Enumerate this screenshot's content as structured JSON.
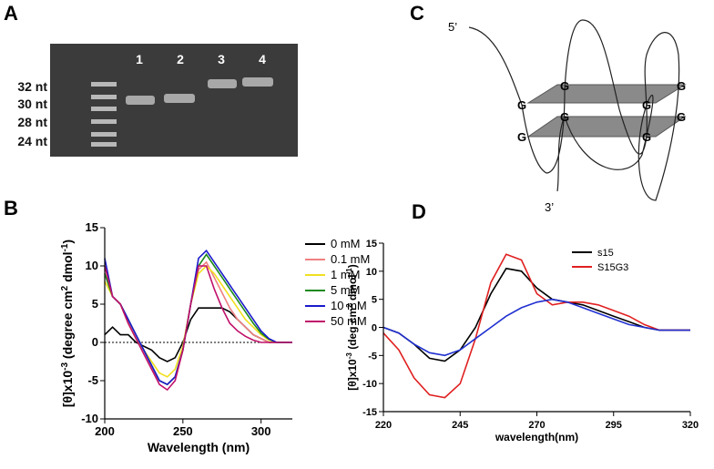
{
  "panel_labels": [
    "A",
    "B",
    "C",
    "D"
  ],
  "gel": {
    "lanes": [
      "1",
      "2",
      "3",
      "4"
    ],
    "sizes": [
      "32 nt",
      "30 nt",
      "28 nt",
      "24 nt"
    ]
  },
  "diagram": {
    "five_prime": "5’",
    "three_prime": "3’",
    "g_labels": [
      "G",
      "G",
      "G",
      "G",
      "G",
      "G",
      "G",
      "G"
    ]
  },
  "chart_data": [
    {
      "type": "line",
      "x_label": "Wavelength (nm)",
      "y_label": [
        "[θ]x10",
        "-3",
        " (degree cm",
        "2",
        " dmol",
        "-1",
        ")"
      ],
      "x": [
        200,
        205,
        210,
        215,
        220,
        225,
        230,
        235,
        240,
        245,
        250,
        255,
        260,
        265,
        270,
        275,
        280,
        285,
        290,
        295,
        300,
        305,
        310,
        315,
        320
      ],
      "xlim": [
        200,
        320
      ],
      "ylim": [
        -10,
        15
      ],
      "xticks": [
        200,
        250,
        300
      ],
      "yticks": [
        -10,
        -5,
        0,
        5,
        10,
        15
      ],
      "zero_line": true,
      "legend": "right",
      "series": [
        {
          "name": "0 mM",
          "color": "#000000",
          "values": [
            1,
            2,
            1,
            1,
            0,
            -0.5,
            -1,
            -2,
            -2.5,
            -2,
            0,
            3,
            4.5,
            4.5,
            4.5,
            4.5,
            4,
            3,
            2,
            1,
            0.5,
            0,
            0,
            0,
            0
          ]
        },
        {
          "name": "0.1 mM",
          "color": "#f08080",
          "values": [
            9,
            6,
            5,
            2.5,
            0.5,
            -1.5,
            -3.5,
            -5,
            -5.5,
            -4.5,
            -1,
            5,
            9.5,
            10.5,
            8.5,
            6.5,
            4.5,
            3,
            2,
            1,
            0.5,
            0,
            0,
            0,
            0
          ]
        },
        {
          "name": "1 mM",
          "color": "#f0e020",
          "values": [
            8,
            6,
            5,
            2.5,
            0.5,
            -1,
            -2.5,
            -4,
            -4.5,
            -3.5,
            -0.5,
            5,
            9,
            10,
            9,
            7.5,
            6,
            4.5,
            3,
            2,
            1,
            0.3,
            0,
            0,
            0
          ]
        },
        {
          "name": "5 mM",
          "color": "#1a8a1a",
          "values": [
            9,
            6,
            5,
            3,
            1,
            -1,
            -3,
            -5,
            -5.5,
            -4.5,
            -1,
            5,
            10,
            11.5,
            10,
            8.5,
            7,
            5.5,
            4,
            2.5,
            1.2,
            0.4,
            0,
            0,
            0
          ]
        },
        {
          "name": "10 mM",
          "color": "#1a1acc",
          "values": [
            11,
            6,
            5,
            3,
            1,
            -1,
            -3,
            -5,
            -5.5,
            -4.5,
            -1,
            5,
            11,
            12,
            10.5,
            9,
            7.5,
            6,
            4.5,
            3,
            1.5,
            0.5,
            0,
            0,
            0
          ]
        },
        {
          "name": "50 mM",
          "color": "#c0106a",
          "values": [
            10,
            6,
            5,
            2.5,
            0.5,
            -1.5,
            -3.5,
            -5.5,
            -6.2,
            -5,
            -1,
            5,
            10,
            10,
            7,
            4.5,
            2.5,
            1.5,
            0.8,
            0.3,
            0,
            0,
            0,
            0,
            0
          ]
        }
      ]
    },
    {
      "type": "line",
      "x_label": "wavelength(nm)",
      "y_label": [
        "[θ]x10",
        "-3",
        " (deg cm",
        "2",
        " dmol",
        "-1",
        ")"
      ],
      "x": [
        220,
        225,
        230,
        235,
        240,
        245,
        250,
        255,
        260,
        265,
        270,
        275,
        280,
        285,
        290,
        295,
        300,
        305,
        310,
        315,
        320
      ],
      "xlim": [
        220,
        320
      ],
      "ylim": [
        -15,
        15
      ],
      "xticks": [
        220,
        245,
        270,
        295,
        320
      ],
      "yticks": [
        -15,
        -10,
        -5,
        0,
        5,
        10,
        15
      ],
      "zero_line": false,
      "legend": "upper right",
      "series": [
        {
          "name": "s15",
          "color": "#000000",
          "values": [
            0,
            -1,
            -3,
            -5.5,
            -6,
            -4,
            0,
            6,
            10.5,
            10,
            7,
            5,
            4.5,
            4,
            3,
            2,
            1,
            0,
            -0.5,
            -0.5,
            -0.5
          ]
        },
        {
          "name": "S15G3",
          "color": "#e02020",
          "values": [
            -1,
            -4,
            -9,
            -12,
            -12.5,
            -10,
            -2,
            8,
            13,
            12,
            6,
            4,
            4.5,
            4.5,
            4,
            3,
            2,
            0.5,
            -0.5,
            -0.5,
            -0.5
          ]
        },
        {
          "color": "#2030d0",
          "values": [
            0,
            -1,
            -3,
            -4.5,
            -5,
            -4,
            -2,
            0,
            2,
            3.5,
            4.5,
            5,
            4.5,
            3.5,
            2.5,
            1.5,
            0.5,
            0,
            -0.5,
            -0.5,
            -0.5
          ]
        }
      ]
    }
  ]
}
